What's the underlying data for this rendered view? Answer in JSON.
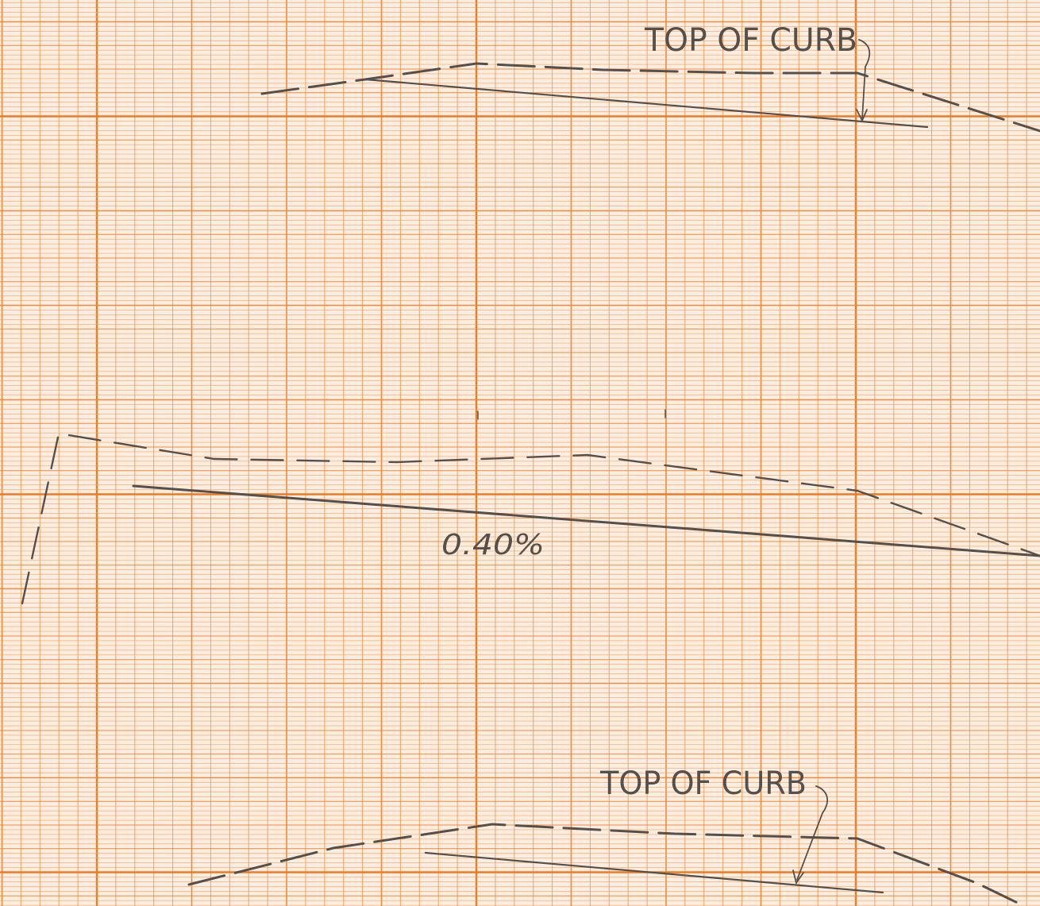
{
  "labels": {
    "top_curb_upper": "TOP OF CURB",
    "grade_percent": "0.40%",
    "top_curb_lower": "TOP OF CURB"
  },
  "colors": {
    "paper": "#fbeee0",
    "grid_fine": "#f3a263",
    "grid_cm": "#f08a3a",
    "grid_major": "#ee7a22",
    "pencil": "#55504c"
  }
}
